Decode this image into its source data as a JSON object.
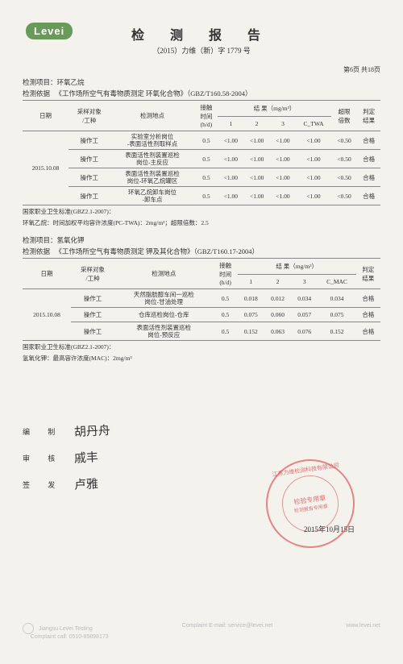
{
  "logo": "Levei",
  "title": "检 测 报 告",
  "doc_no": "（2015）力维（新）字 1779 号",
  "page_label": "第6页 共18页",
  "section1": {
    "item_label": "检测项目：",
    "item_value": "环氧乙烷",
    "basis_label": "检测依据",
    "basis_value": "《工作场所空气有毒物质测定 环氧化合物》（GBZ/T160.58-2004）",
    "headers": {
      "date": "日期",
      "subject": "采样对象\n/工种",
      "location": "检测地点",
      "contact": "接触\n时间\n(h/d)",
      "result_group": "结  果（mg/m³）",
      "c1": "1",
      "c2": "2",
      "c3": "3",
      "ctwa": "C_TWA",
      "multiple": "超限\n倍数",
      "judge": "判定\n结果"
    },
    "date": "2015.10.08",
    "rows": [
      {
        "subject": "操作工",
        "location": "实验室分析岗位\n-表面活性剂取样点",
        "contact": "0.5",
        "v1": "<1.00",
        "v2": "<1.00",
        "v3": "<1.00",
        "ctwa": "<1.00",
        "multiple": "<0.50",
        "judge": "合格"
      },
      {
        "subject": "操作工",
        "location": "表面活性剂装置巡检\n岗位-主反应",
        "contact": "0.5",
        "v1": "<1.00",
        "v2": "<1.00",
        "v3": "<1.00",
        "ctwa": "<1.00",
        "multiple": "<0.50",
        "judge": "合格"
      },
      {
        "subject": "操作工",
        "location": "表面活性剂装置巡检\n岗位-环氧乙烷罐区",
        "contact": "0.5",
        "v1": "<1.00",
        "v2": "<1.00",
        "v3": "<1.00",
        "ctwa": "<1.00",
        "multiple": "<0.50",
        "judge": "合格"
      },
      {
        "subject": "操作工",
        "location": "环氧乙烷卸车岗位\n-卸车点",
        "contact": "0.5",
        "v1": "<1.00",
        "v2": "<1.00",
        "v3": "<1.00",
        "ctwa": "<1.00",
        "multiple": "<0.50",
        "judge": "合格"
      }
    ],
    "footnote1": "国家职业卫生标准(GBZ2.1-2007)：",
    "footnote2": "环氧乙烷：时间加权平均容许浓度(PC-TWA)：2mg/m³；超限倍数：2.5"
  },
  "section2": {
    "item_label": "检测项目：",
    "item_value": "氢氧化钾",
    "basis_label": "检测依据",
    "basis_value": "《工作场所空气有毒物质测定 钾及其化合物》（GBZ/T160.17-2004）",
    "headers": {
      "date": "日期",
      "subject": "采样对象\n/工种",
      "location": "检测地点",
      "contact": "接触\n时间\n(h/d)",
      "result_group": "结  果（mg/m³）",
      "c1": "1",
      "c2": "2",
      "c3": "3",
      "cmac": "C_MAC",
      "judge": "判定\n结果"
    },
    "date": "2015.10.08",
    "rows": [
      {
        "subject": "操作工",
        "location": "天然脂肪醇车间一巡检\n岗位-甘油处理",
        "contact": "0.5",
        "v1": "0.018",
        "v2": "0.012",
        "v3": "0.034",
        "cmac": "0.034",
        "judge": "合格"
      },
      {
        "subject": "操作工",
        "location": "仓库巡检岗位-仓库",
        "contact": "0.5",
        "v1": "0.075",
        "v2": "0.060",
        "v3": "0.057",
        "cmac": "0.075",
        "judge": "合格"
      },
      {
        "subject": "操作工",
        "location": "表面活性剂装置巡检\n岗位-预反应",
        "contact": "0.5",
        "v1": "0.152",
        "v2": "0.063",
        "v3": "0.076",
        "cmac": "0.152",
        "judge": "合格"
      }
    ],
    "footnote1": "国家职业卫生标准(GBZ2.1-2007)：",
    "footnote2": "氢氧化钾：最高容许浓度(MAC)：2mg/m³"
  },
  "signatures": {
    "compile_label": "编  制",
    "compile_name": "胡丹舟",
    "review_label": "审  核",
    "review_name": "戚丰",
    "issue_label": "签  发",
    "issue_name": "卢雅"
  },
  "stamp": {
    "outer": "江苏力维检测科技有限公司",
    "inner1": "检验专用章",
    "inner2": "检测报告专用章"
  },
  "stamp_date": "2015年10月15日",
  "footer": {
    "left1": "Jiangsu Levei Testing",
    "left2": "Complaint call: 0510-85898173",
    "mid": "Complaint E-mail: service@levei.net",
    "right": "www.levei.net"
  },
  "colors": {
    "page_bg": "#f4f2ed",
    "logo_bg": "#6a9a5a",
    "text": "#333333",
    "border": "#888888",
    "stamp": "#dc2828",
    "footer_text": "#bbbbbb"
  }
}
